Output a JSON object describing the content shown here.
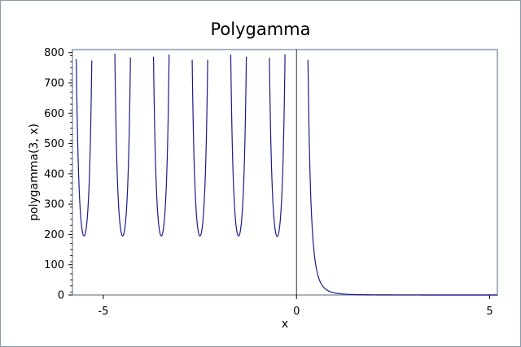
{
  "chart_data": {
    "type": "line",
    "title": "Polygamma",
    "xlabel": "x",
    "ylabel": "polygamma(3, x)",
    "xlim": [
      -5.8,
      5.2
    ],
    "ylim": [
      0,
      810
    ],
    "x_ticks": [
      -5,
      0,
      5
    ],
    "y_ticks": [
      0,
      100,
      200,
      300,
      400,
      500,
      600,
      700,
      800
    ],
    "series": [
      {
        "function": "polygamma(3, x)",
        "clip_max": 800,
        "color": "#1a1a8c",
        "domain": [
          -5.8,
          5.2
        ]
      }
    ],
    "grid": false,
    "legend": "none"
  },
  "colors": {
    "plot_border": "#8a9aab",
    "curve": "#1a1a8c",
    "axis_line": "#333333"
  }
}
